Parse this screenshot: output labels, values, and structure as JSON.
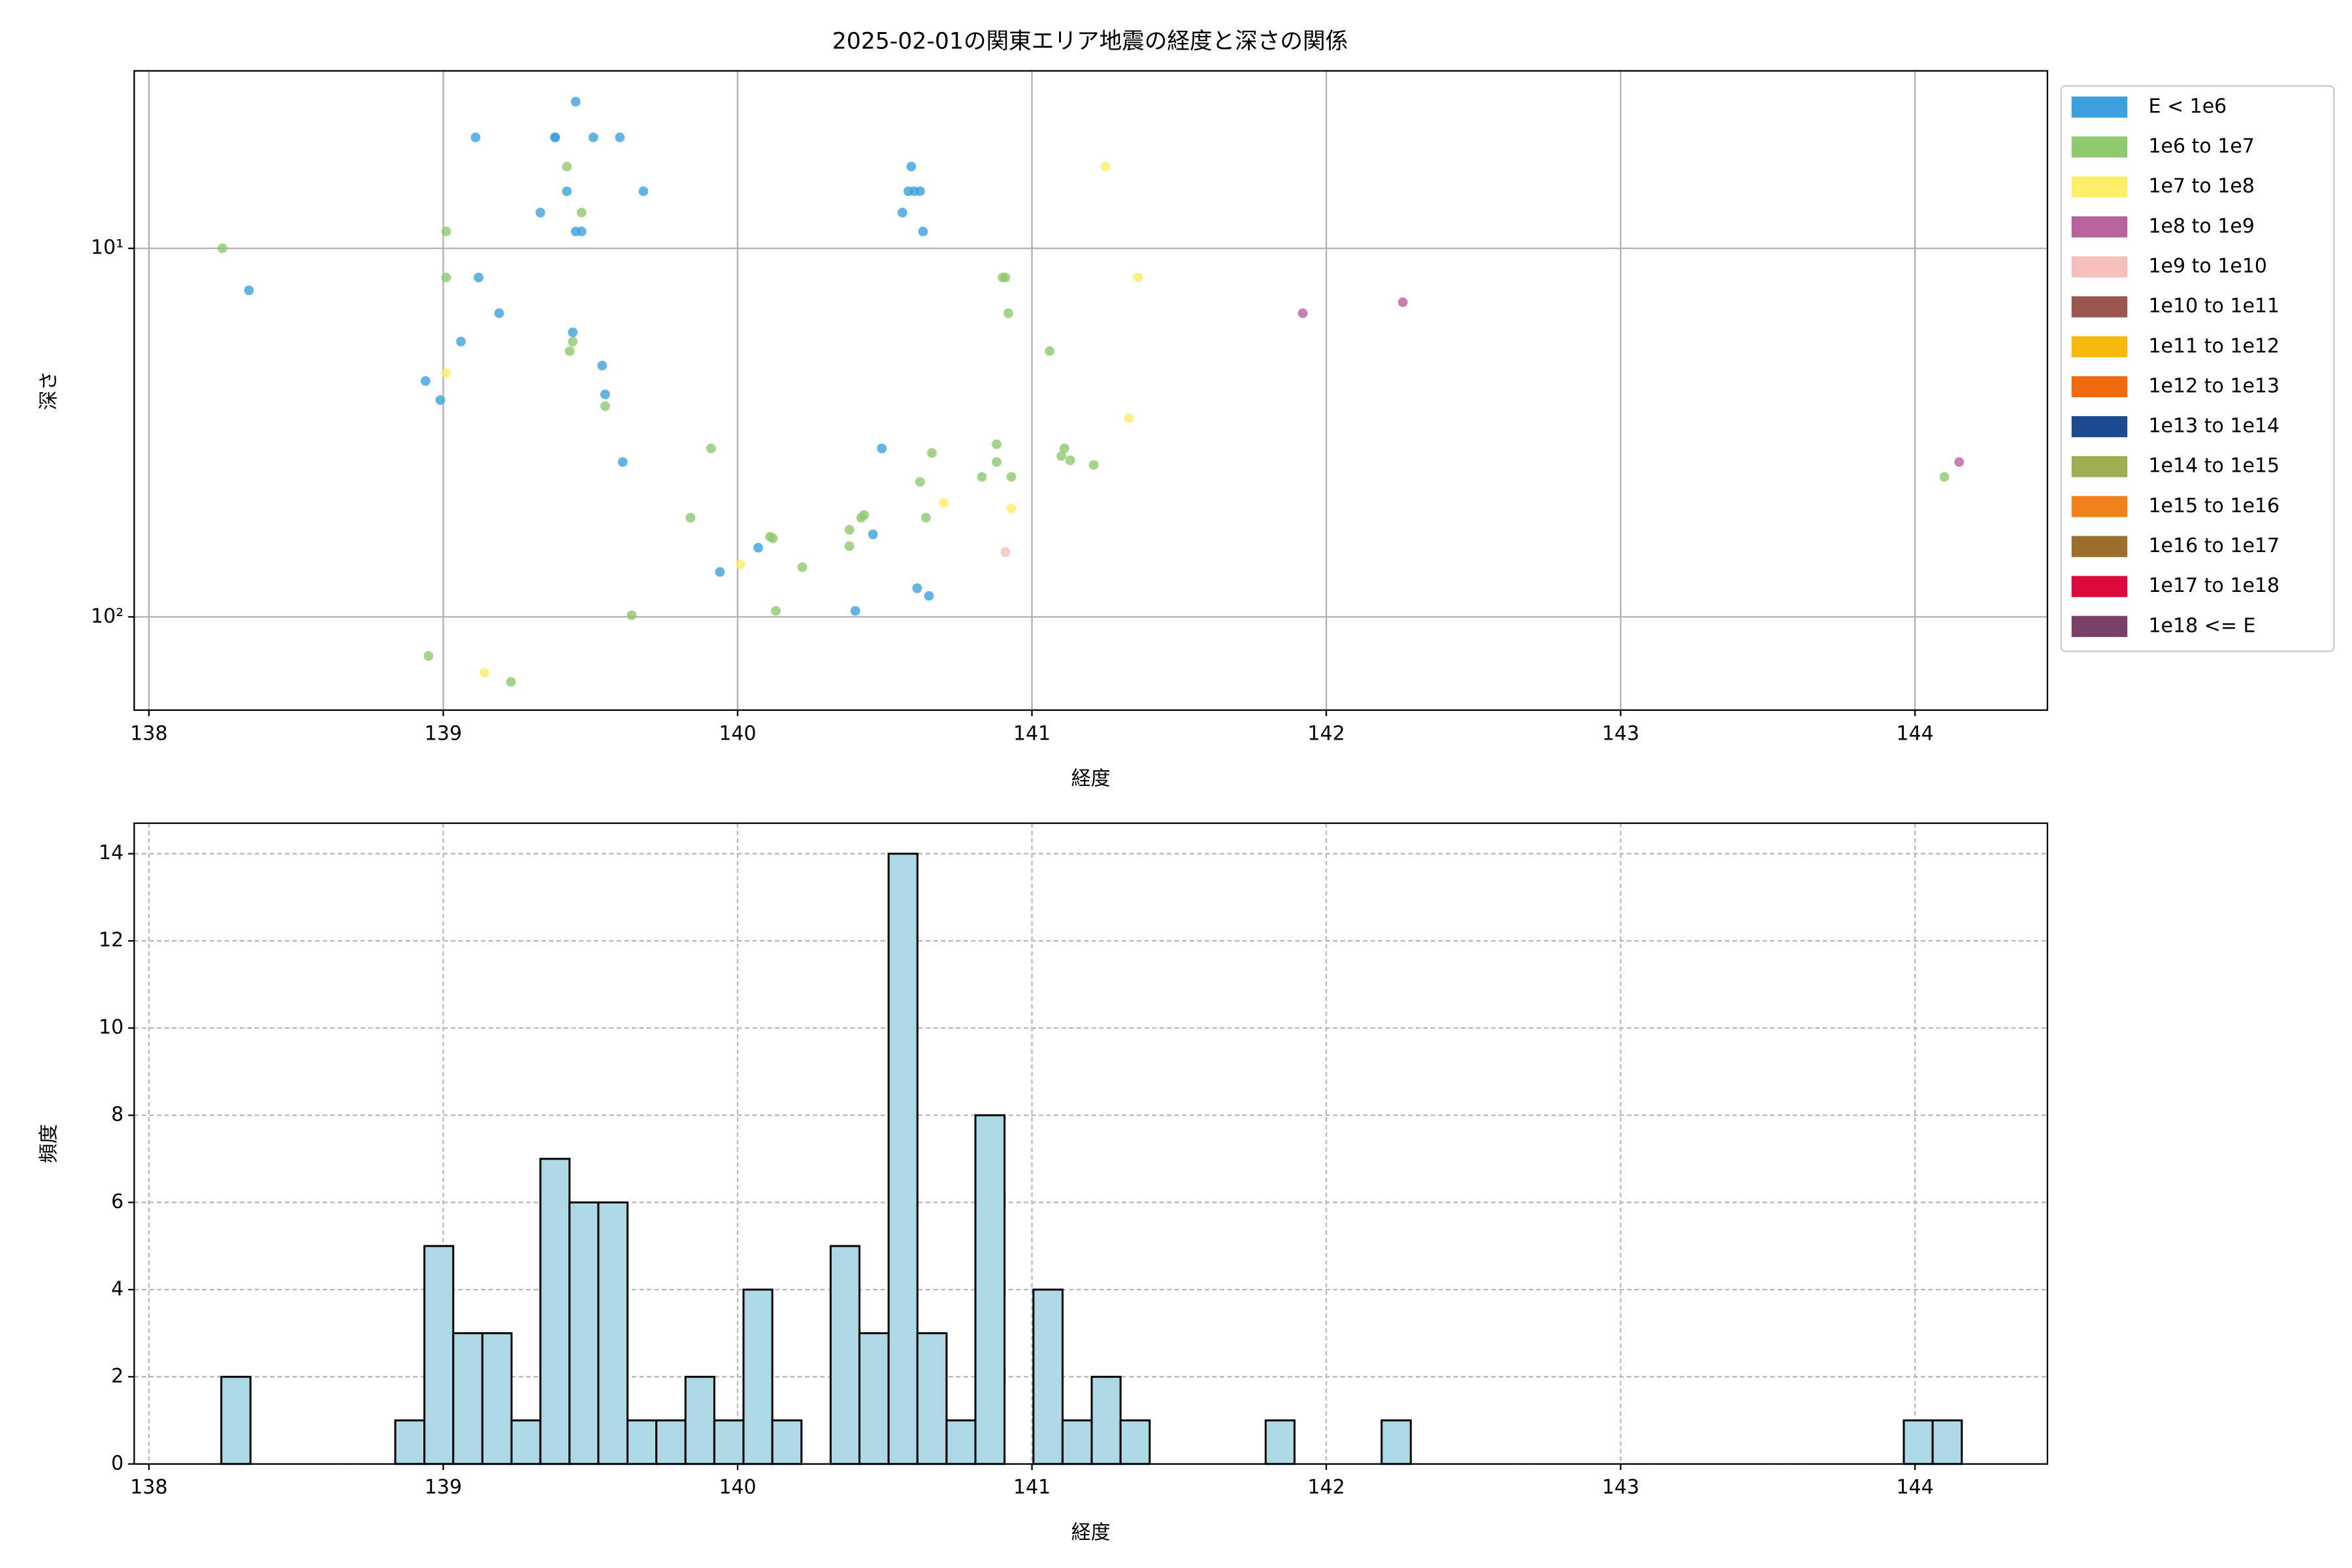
{
  "chart_data": [
    {
      "type": "scatter",
      "title": "2025-02-01の関東エリア地震の経度と深さの関係",
      "xlabel": "経度",
      "ylabel": "深さ",
      "xlim": [
        137.95,
        144.45
      ],
      "ylim": [
        179,
        3.3
      ],
      "yscale": "log",
      "xticks": [
        138,
        139,
        140,
        141,
        142,
        143,
        144
      ],
      "yticks": [
        {
          "value": 10,
          "label": "10¹"
        },
        {
          "value": 100,
          "label": "10²"
        }
      ],
      "grid": true,
      "legend": "outside right",
      "series": [
        {
          "name": "E < 1e6",
          "color": "#3ca0dc",
          "x": [
            139.45,
            139.11,
            139.38,
            139.38,
            139.51,
            139.6,
            139.42,
            139.33,
            139.45,
            139.47,
            139.68,
            138.34,
            139.12,
            139.19,
            139.06,
            139.44,
            138.94,
            138.99,
            139.54,
            139.55,
            139.61,
            140.59,
            140.56,
            140.58,
            140.6,
            140.62,
            140.63,
            140.49,
            140.46,
            140.07,
            139.94,
            140.61,
            140.65,
            140.4
          ],
          "y": [
            4.0,
            5.0,
            5.0,
            5.0,
            5.0,
            5.0,
            7.0,
            8.0,
            9.0,
            9.0,
            7.0,
            13.0,
            12.0,
            15.0,
            17.9,
            16.9,
            22.9,
            25.8,
            20.8,
            24.9,
            38.0,
            6.0,
            8.0,
            7.0,
            7.0,
            7.0,
            9.0,
            34.9,
            59.7,
            64.9,
            75.5,
            83.6,
            87.7,
            96.3
          ]
        },
        {
          "name": "1e6 to 1e7",
          "color": "#8fc86e",
          "x": [
            138.25,
            139.42,
            139.47,
            139.01,
            139.01,
            139.44,
            139.43,
            139.55,
            139.91,
            139.84,
            140.12,
            140.11,
            140.22,
            140.13,
            139.64,
            138.95,
            139.23,
            140.38,
            140.38,
            140.43,
            140.42,
            140.64,
            140.62,
            140.66,
            140.83,
            140.88,
            140.88,
            140.93,
            140.9,
            140.91,
            140.92,
            141.06,
            141.11,
            141.1,
            141.13,
            141.21,
            144.1
          ],
          "y": [
            10,
            6.0,
            8.0,
            9.0,
            12.0,
            17.9,
            19.0,
            26.8,
            34.9,
            53.8,
            61.2,
            60.6,
            73.3,
            96.3,
            99,
            127.6,
            150,
            58.0,
            64.3,
            52.9,
            53.8,
            53.8,
            43.0,
            35.9,
            41.7,
            34.0,
            38.0,
            41.7,
            12.0,
            12.0,
            15.0,
            19.0,
            34.9,
            36.6,
            37.6,
            38.7,
            41.7
          ]
        },
        {
          "name": "1e7 to 1e8",
          "color": "#ffee6a",
          "x": [
            141.25,
            141.36,
            141.33,
            140.7,
            140.93,
            140.01,
            139.14,
            139.01
          ],
          "y": [
            6.0,
            12.0,
            28.9,
            49.0,
            50.8,
            72.0,
            141.6,
            21.8
          ]
        },
        {
          "name": "1e8 to 1e9",
          "color": "#b8619f",
          "x": [
            141.92,
            142.26,
            144.15
          ],
          "y": [
            15.0,
            14.0,
            38.0
          ]
        },
        {
          "name": "1e9 to 1e10",
          "color": "#f5c0bb",
          "x": [
            140.91
          ],
          "y": [
            66.7
          ]
        },
        {
          "name": "1e10 to 1e11",
          "color": "#9a564f",
          "x": [],
          "y": []
        },
        {
          "name": "1e11 to 1e12",
          "color": "#f8b90e",
          "x": [],
          "y": []
        },
        {
          "name": "1e12 to 1e13",
          "color": "#ee6a0d",
          "x": [],
          "y": []
        },
        {
          "name": "1e13 to 1e14",
          "color": "#1c4a90",
          "x": [],
          "y": []
        },
        {
          "name": "1e14 to 1e15",
          "color": "#9daf52",
          "x": [],
          "y": []
        },
        {
          "name": "1e15 to 1e16",
          "color": "#f08019",
          "x": [],
          "y": []
        },
        {
          "name": "1e16 to 1e17",
          "color": "#9a702c",
          "x": [],
          "y": []
        },
        {
          "name": "1e17 to 1e18",
          "color": "#dc0a3c",
          "x": [],
          "y": []
        },
        {
          "name": "1e18 <= E",
          "color": "#7a4068",
          "x": [],
          "y": []
        }
      ]
    },
    {
      "type": "histogram",
      "xlabel": "経度",
      "ylabel": "頻度",
      "xlim": [
        137.95,
        144.45
      ],
      "ylim": [
        0,
        14.7
      ],
      "xticks": [
        138,
        139,
        140,
        141,
        142,
        143,
        144
      ],
      "yticks": [
        0,
        2,
        4,
        6,
        8,
        10,
        12,
        14
      ],
      "grid": true,
      "grid_style": "dashed",
      "color": "#add8e6",
      "edgecolor": "#000000",
      "bins": [
        138.246,
        138.345,
        138.443,
        138.542,
        138.64,
        138.739,
        138.837,
        138.936,
        139.034,
        139.133,
        139.232,
        139.33,
        139.429,
        139.527,
        139.626,
        139.724,
        139.823,
        139.921,
        140.02,
        140.118,
        140.217,
        140.316,
        140.414,
        140.513,
        140.611,
        140.71,
        140.808,
        140.907,
        141.005,
        141.104,
        141.203,
        141.301,
        141.4,
        141.498,
        141.597,
        141.695,
        141.794,
        141.892,
        141.991,
        142.089,
        142.188,
        142.287,
        142.385,
        142.484,
        142.582,
        142.681,
        142.779,
        142.878,
        142.976,
        143.075,
        143.174,
        143.272,
        143.371,
        143.469,
        143.568,
        143.666,
        143.765,
        143.863,
        143.962,
        144.06,
        144.159
      ],
      "counts": [
        2,
        0,
        0,
        0,
        0,
        0,
        1,
        5,
        3,
        3,
        1,
        7,
        6,
        6,
        1,
        1,
        2,
        1,
        4,
        1,
        0,
        5,
        3,
        14,
        3,
        1,
        8,
        0,
        4,
        1,
        2,
        1,
        0,
        0,
        0,
        0,
        1,
        0,
        0,
        0,
        1,
        0,
        0,
        0,
        0,
        0,
        0,
        0,
        0,
        0,
        0,
        0,
        0,
        0,
        0,
        0,
        0,
        0,
        1,
        1
      ]
    }
  ]
}
